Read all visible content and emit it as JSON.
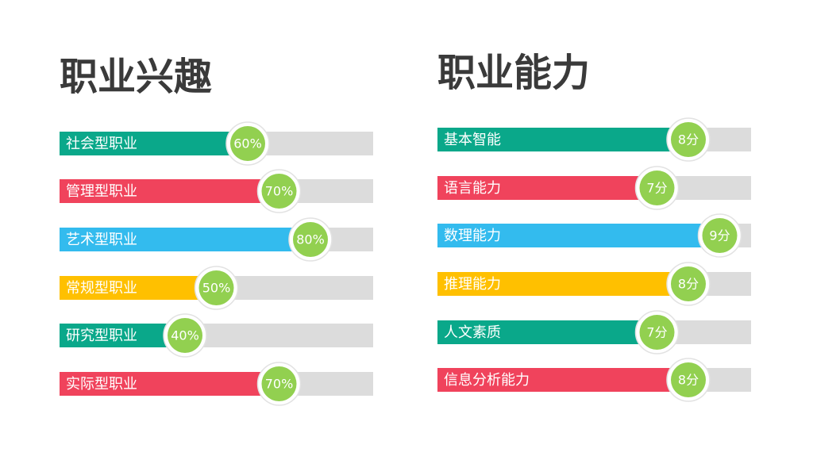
{
  "chart_data": [
    {
      "type": "bar",
      "orientation": "horizontal",
      "title": "职业兴趣",
      "categories": [
        "社会型职业",
        "管理型职业",
        "艺术型职业",
        "常规型职业",
        "研究型职业",
        "实际型职业"
      ],
      "values": [
        60,
        70,
        80,
        50,
        40,
        70
      ],
      "value_labels": [
        "60%",
        "70%",
        "80%",
        "50%",
        "40%",
        "70%"
      ],
      "colors": [
        "#0aa88a",
        "#f0435c",
        "#33bbee",
        "#ffc000",
        "#0aa88a",
        "#f0435c"
      ],
      "xlim": [
        0,
        100
      ]
    },
    {
      "type": "bar",
      "orientation": "horizontal",
      "title": "职业能力",
      "categories": [
        "基本智能",
        "语言能力",
        "数理能力",
        "推理能力",
        "人文素质",
        "信息分析能力"
      ],
      "values": [
        8,
        7,
        9,
        8,
        7,
        8
      ],
      "value_labels": [
        "8分",
        "7分",
        "9分",
        "8分",
        "7分",
        "8分"
      ],
      "colors": [
        "#0aa88a",
        "#f0435c",
        "#33bbee",
        "#ffc000",
        "#0aa88a",
        "#f0435c"
      ],
      "xlim": [
        0,
        10
      ]
    }
  ]
}
